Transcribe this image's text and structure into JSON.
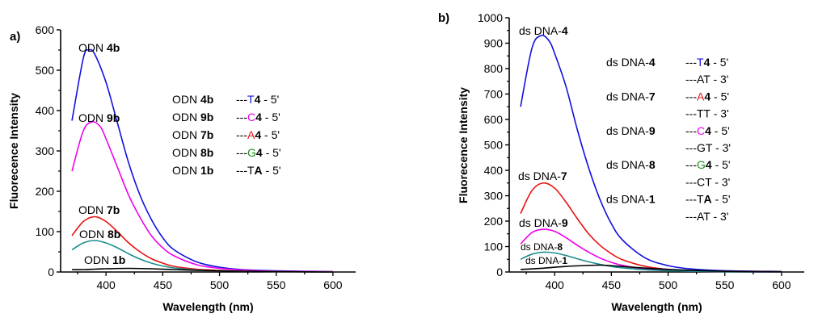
{
  "chart_data": [
    {
      "type": "line",
      "panel_label": "a)",
      "xlabel": "Wavelength (nm)",
      "ylabel": "Fluorecence Intensity",
      "xlim": [
        360,
        620
      ],
      "ylim": [
        0,
        600
      ],
      "xticks": [
        400,
        450,
        500,
        550,
        600
      ],
      "yticks": [
        0,
        100,
        200,
        300,
        400,
        500,
        600
      ],
      "grid": false,
      "series": [
        {
          "name": "ODN 4b",
          "prefix": "ODN ",
          "bold": "4b",
          "color": "#1010e0",
          "x": [
            370,
            380,
            385,
            390,
            400,
            410,
            420,
            430,
            440,
            450,
            460,
            480,
            500,
            520,
            550,
            600
          ],
          "y": [
            375,
            530,
            550,
            540,
            470,
            370,
            270,
            190,
            130,
            85,
            55,
            25,
            12,
            6,
            3,
            1
          ]
        },
        {
          "name": "ODN 9b",
          "prefix": "ODN ",
          "bold": "9b",
          "color": "#ee00ee",
          "x": [
            370,
            380,
            388,
            395,
            400,
            410,
            420,
            430,
            440,
            450,
            460,
            480,
            500,
            520,
            550,
            600
          ],
          "y": [
            250,
            350,
            372,
            360,
            330,
            260,
            190,
            135,
            90,
            60,
            40,
            18,
            9,
            5,
            2,
            1
          ]
        },
        {
          "name": "ODN 7b",
          "prefix": "ODN ",
          "bold": "7b",
          "color": "#e81010",
          "x": [
            370,
            380,
            390,
            400,
            410,
            420,
            430,
            440,
            450,
            460,
            480,
            500,
            520,
            550,
            600
          ],
          "y": [
            90,
            125,
            137,
            125,
            100,
            72,
            50,
            33,
            22,
            14,
            7,
            4,
            2,
            1,
            0
          ]
        },
        {
          "name": "ODN 8b",
          "prefix": "ODN ",
          "bold": "8b",
          "color": "#1a8c8c",
          "x": [
            370,
            380,
            390,
            400,
            410,
            420,
            430,
            440,
            450,
            460,
            480,
            500,
            520,
            550,
            600
          ],
          "y": [
            55,
            72,
            78,
            72,
            60,
            45,
            32,
            22,
            15,
            10,
            5,
            3,
            2,
            1,
            0
          ]
        },
        {
          "name": "ODN 1b",
          "prefix": "ODN ",
          "bold": "1b",
          "color": "#000000",
          "x": [
            370,
            380,
            390,
            400,
            420,
            440,
            460,
            480,
            500,
            520,
            550,
            600
          ],
          "y": [
            6,
            6,
            7,
            8,
            9,
            8,
            6,
            4,
            3,
            2,
            1,
            0
          ]
        }
      ],
      "legend": [
        {
          "name": "ODN ",
          "name_bold": "4b",
          "seq_pre": "---",
          "seq_color": "T",
          "seq_color_hex": "#1010e0",
          "seq_bold": "4",
          "seq_post": " - 5'"
        },
        {
          "name": "ODN ",
          "name_bold": "9b",
          "seq_pre": "---",
          "seq_color": "C",
          "seq_color_hex": "#ee00ee",
          "seq_bold": "4",
          "seq_post": " - 5'"
        },
        {
          "name": "ODN ",
          "name_bold": "7b",
          "seq_pre": "---",
          "seq_color": "A",
          "seq_color_hex": "#e81010",
          "seq_bold": "4",
          "seq_post": " - 5'"
        },
        {
          "name": "ODN ",
          "name_bold": "8b",
          "seq_pre": "---",
          "seq_color": "G",
          "seq_color_hex": "#1a8c1a",
          "seq_bold": "4",
          "seq_post": " - 5'"
        },
        {
          "name": "ODN ",
          "name_bold": "1b",
          "seq_pre": "---T",
          "seq_color": "",
          "seq_color_hex": "#000000",
          "seq_bold": "A",
          "seq_post": " - 5'"
        }
      ]
    },
    {
      "type": "line",
      "panel_label": "b)",
      "xlabel": "Wavelength (nm)",
      "ylabel": "Fluorecence Intensity",
      "xlim": [
        360,
        620
      ],
      "ylim": [
        0,
        1000
      ],
      "xticks": [
        400,
        450,
        500,
        550,
        600
      ],
      "yticks": [
        0,
        100,
        200,
        300,
        400,
        500,
        600,
        700,
        800,
        900,
        1000
      ],
      "grid": false,
      "series": [
        {
          "name": "ds DNA-4",
          "prefix": "ds DNA-",
          "bold": "4",
          "color": "#1010e0",
          "x": [
            370,
            380,
            388,
            395,
            400,
            410,
            420,
            430,
            440,
            450,
            460,
            480,
            500,
            520,
            550,
            600
          ],
          "y": [
            650,
            880,
            930,
            910,
            860,
            730,
            560,
            410,
            285,
            190,
            125,
            55,
            25,
            12,
            5,
            2
          ]
        },
        {
          "name": "ds DNA-7",
          "prefix": "ds DNA-",
          "bold": "7",
          "color": "#e81010",
          "x": [
            370,
            380,
            390,
            400,
            410,
            420,
            430,
            440,
            450,
            460,
            480,
            500,
            520,
            550,
            600
          ],
          "y": [
            230,
            320,
            350,
            330,
            275,
            210,
            150,
            105,
            72,
            48,
            22,
            10,
            5,
            2,
            1
          ]
        },
        {
          "name": "ds DNA-9",
          "prefix": "ds DNA-",
          "bold": "9",
          "color": "#ee00ee",
          "x": [
            370,
            380,
            390,
            400,
            410,
            420,
            430,
            440,
            450,
            460,
            480,
            500,
            520,
            550,
            600
          ],
          "y": [
            110,
            155,
            168,
            160,
            135,
            105,
            78,
            55,
            38,
            26,
            12,
            6,
            3,
            1,
            0
          ]
        },
        {
          "name": "ds DNA-8",
          "prefix": "ds DNA-",
          "bold": "8",
          "color": "#1a8c8c",
          "x": [
            370,
            380,
            390,
            400,
            410,
            420,
            430,
            440,
            450,
            460,
            480,
            500,
            520,
            550,
            600
          ],
          "y": [
            50,
            70,
            78,
            75,
            65,
            52,
            40,
            30,
            22,
            16,
            9,
            5,
            3,
            1,
            0
          ]
        },
        {
          "name": "ds DNA-1",
          "prefix": "ds DNA-",
          "bold": "1",
          "color": "#000000",
          "x": [
            370,
            390,
            410,
            430,
            440,
            450,
            470,
            500,
            530,
            560,
            600
          ],
          "y": [
            10,
            15,
            22,
            26,
            27,
            25,
            18,
            10,
            5,
            2,
            1
          ]
        }
      ],
      "legend": [
        {
          "name": "ds DNA-",
          "name_bold": "4",
          "seq_pre": "---",
          "seq_color": "T",
          "seq_color_hex": "#1010e0",
          "seq_bold": "4",
          "seq_post": " - 5'",
          "comp": "---AT - 3'"
        },
        {
          "name": "ds DNA-",
          "name_bold": "7",
          "seq_pre": "---",
          "seq_color": "A",
          "seq_color_hex": "#e81010",
          "seq_bold": "4",
          "seq_post": " - 5'",
          "comp": "---TT - 3'"
        },
        {
          "name": "ds DNA-",
          "name_bold": "9",
          "seq_pre": "---",
          "seq_color": "C",
          "seq_color_hex": "#ee00ee",
          "seq_bold": "4",
          "seq_post": " - 5'",
          "comp": "---GT - 3'"
        },
        {
          "name": "ds DNA-",
          "name_bold": "8",
          "seq_pre": "---",
          "seq_color": "G",
          "seq_color_hex": "#1a8c1a",
          "seq_bold": "4",
          "seq_post": " - 5'",
          "comp": "---CT - 3'"
        },
        {
          "name": "ds DNA-",
          "name_bold": "1",
          "seq_pre": "---T",
          "seq_color": "",
          "seq_color_hex": "#000000",
          "seq_bold": "A",
          "seq_post": " - 5'",
          "comp": "---AT - 3'"
        }
      ]
    }
  ]
}
